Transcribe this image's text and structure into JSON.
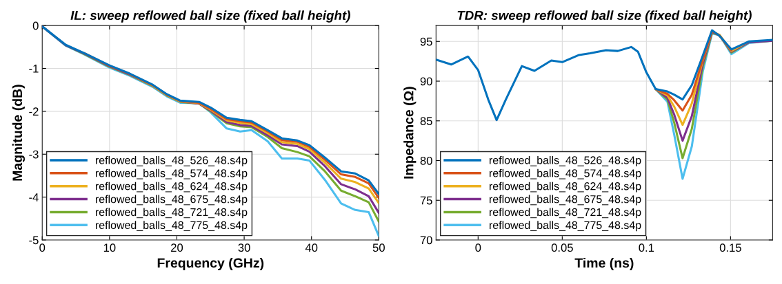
{
  "chart_data": [
    {
      "type": "line",
      "title": "IL: sweep reflowed ball size (fixed ball height)",
      "xlabel": "Frequency (GHz)",
      "ylabel": "Magnitude (dB)",
      "x": [
        0,
        3.5,
        6.2,
        10,
        13,
        16.4,
        18.5,
        20.5,
        23.3,
        25,
        27.4,
        29.4,
        31.1,
        33.5,
        35.6,
        37.9,
        39.7,
        42,
        44.4,
        46.5,
        48.5,
        50
      ],
      "xlim": [
        0,
        50
      ],
      "xticks": [
        0,
        10,
        20,
        30,
        40,
        50
      ],
      "ylim": [
        -5,
        0
      ],
      "yticks": [
        {
          "value": -5,
          "label": "-5"
        },
        {
          "value": -4,
          "label": "-4"
        },
        {
          "value": -3,
          "label": "-3"
        },
        {
          "value": -2,
          "label": "-2"
        },
        {
          "value": -1,
          "label": "-1"
        },
        0
      ],
      "grid": true,
      "legend": "bottom left",
      "series": [
        {
          "name": "reflowed_balls_48_526_48.s4p",
          "color": "#0072bd",
          "values": [
            -0.02,
            -0.45,
            -0.64,
            -0.93,
            -1.12,
            -1.38,
            -1.6,
            -1.75,
            -1.78,
            -1.91,
            -2.15,
            -2.2,
            -2.23,
            -2.44,
            -2.63,
            -2.68,
            -2.79,
            -3.08,
            -3.4,
            -3.45,
            -3.61,
            -3.93
          ]
        },
        {
          "name": "reflowed_balls_48_574_48.s4p",
          "color": "#d95319",
          "values": [
            null,
            null,
            -0.64,
            -0.94,
            -1.13,
            -1.39,
            -1.61,
            -1.76,
            -1.8,
            -1.94,
            -2.18,
            -2.23,
            -2.26,
            -2.47,
            -2.67,
            -2.71,
            -2.83,
            -3.13,
            -3.47,
            -3.53,
            -3.68,
            -4.02
          ]
        },
        {
          "name": "reflowed_balls_48_624_48.s4p",
          "color": "#edb120",
          "values": [
            null,
            null,
            null,
            null,
            -1.13,
            -1.4,
            -1.62,
            -1.77,
            -1.81,
            -1.96,
            -2.21,
            -2.27,
            -2.3,
            -2.51,
            -2.72,
            -2.76,
            -2.88,
            -3.2,
            -3.57,
            -3.65,
            -3.8,
            -4.14
          ]
        },
        {
          "name": "reflowed_balls_48_675_48.s4p",
          "color": "#7e2f8e",
          "values": [
            -0.02,
            -0.46,
            -0.65,
            -0.95,
            -1.14,
            -1.4,
            -1.62,
            -1.77,
            -1.82,
            -1.98,
            -2.25,
            -2.32,
            -2.34,
            -2.56,
            -2.77,
            -2.81,
            -2.94,
            -3.28,
            -3.7,
            -3.82,
            -3.98,
            -4.37
          ]
        },
        {
          "name": "reflowed_balls_48_721_48.s4p",
          "color": "#77ac30",
          "values": [
            -0.02,
            -0.46,
            -0.66,
            -0.96,
            -1.15,
            -1.41,
            -1.63,
            -1.78,
            -1.82,
            -2.0,
            -2.28,
            -2.35,
            -2.37,
            -2.6,
            -2.86,
            -2.95,
            -3.05,
            -3.4,
            -3.85,
            -3.98,
            -4.12,
            -4.57
          ]
        },
        {
          "name": "reflowed_balls_48_775_48.s4p",
          "color": "#4dbeee",
          "values": [
            -0.02,
            -0.47,
            -0.67,
            -0.98,
            -1.17,
            -1.43,
            -1.65,
            -1.8,
            -1.81,
            -2.02,
            -2.4,
            -2.47,
            -2.44,
            -2.7,
            -3.1,
            -3.1,
            -3.15,
            -3.6,
            -4.15,
            -4.3,
            -4.35,
            -4.91
          ]
        }
      ]
    },
    {
      "type": "line",
      "title": "TDR: sweep reflowed ball size (fixed ball height)",
      "xlabel": "Time (ns)",
      "ylabel": "Impedance (Ω)",
      "x": [
        -0.025,
        -0.016,
        -0.006,
        0,
        0.006,
        0.011,
        0.0165,
        0.026,
        0.0335,
        0.0435,
        0.05,
        0.06,
        0.0665,
        0.076,
        0.083,
        0.091,
        0.095,
        0.1,
        0.1055,
        0.1125,
        0.1165,
        0.1215,
        0.127,
        0.1335,
        0.139,
        0.1435,
        0.1505,
        0.161,
        0.175
      ],
      "xlim": [
        -0.025,
        0.175
      ],
      "xticks": [
        0,
        0.05,
        0.1,
        0.15
      ],
      "ylim": [
        70,
        97
      ],
      "yticks": [
        70,
        75,
        80,
        85,
        90,
        95
      ],
      "grid": true,
      "legend": "bottom left",
      "series": [
        {
          "name": "reflowed_balls_48_526_48.s4p",
          "color": "#0072bd",
          "values": [
            92.7,
            92.1,
            93.1,
            91.4,
            87.7,
            85.1,
            87.7,
            91.9,
            91.3,
            92.6,
            92.4,
            93.3,
            93.5,
            93.9,
            93.8,
            94.3,
            93.7,
            91.1,
            89.0,
            88.7,
            88.3,
            87.7,
            89.5,
            93.2,
            96.4,
            95.7,
            94.0,
            95.0,
            95.2
          ]
        },
        {
          "name": "reflowed_balls_48_574_48.s4p",
          "color": "#d95319",
          "values": [
            null,
            null,
            null,
            null,
            null,
            null,
            null,
            null,
            null,
            null,
            null,
            null,
            null,
            null,
            null,
            null,
            null,
            null,
            89.0,
            88.4,
            87.6,
            86.3,
            88.3,
            92.7,
            96.3,
            95.7,
            93.9,
            null,
            null
          ]
        },
        {
          "name": "reflowed_balls_48_624_48.s4p",
          "color": "#edb120",
          "values": [
            null,
            null,
            null,
            null,
            null,
            null,
            null,
            null,
            null,
            null,
            null,
            null,
            null,
            null,
            null,
            null,
            null,
            null,
            89.0,
            88.2,
            86.8,
            84.5,
            87.2,
            92.6,
            96.3,
            95.8,
            93.8,
            95.0,
            null
          ]
        },
        {
          "name": "reflowed_balls_48_675_48.s4p",
          "color": "#7e2f8e",
          "values": [
            null,
            null,
            null,
            null,
            null,
            null,
            null,
            null,
            null,
            null,
            null,
            null,
            null,
            null,
            null,
            null,
            null,
            null,
            89.0,
            87.9,
            85.8,
            82.5,
            85.6,
            92.2,
            96.2,
            95.8,
            93.7,
            94.9,
            95.1
          ]
        },
        {
          "name": "reflowed_balls_48_721_48.s4p",
          "color": "#77ac30",
          "values": [
            null,
            null,
            null,
            null,
            null,
            null,
            null,
            null,
            null,
            null,
            null,
            null,
            null,
            null,
            null,
            null,
            null,
            null,
            89.0,
            87.7,
            84.8,
            80.3,
            84.0,
            91.8,
            96.1,
            95.8,
            93.6,
            94.9,
            95.1
          ]
        },
        {
          "name": "reflowed_balls_48_775_48.s4p",
          "color": "#4dbeee",
          "values": [
            null,
            null,
            null,
            null,
            null,
            null,
            null,
            null,
            null,
            null,
            null,
            null,
            null,
            null,
            null,
            null,
            null,
            null,
            89.0,
            87.4,
            83.3,
            77.7,
            81.8,
            91.2,
            96.0,
            95.8,
            93.4,
            94.8,
            95.1
          ]
        }
      ]
    }
  ]
}
